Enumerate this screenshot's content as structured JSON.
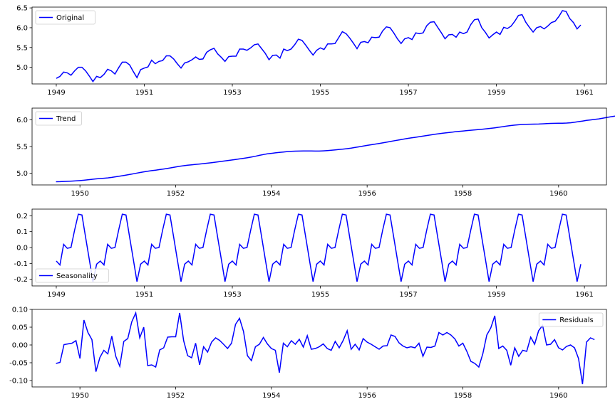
{
  "colors": {
    "line": "#0000ff",
    "axes": "#000000",
    "legend_edge": "#cccccc"
  },
  "chart_data": [
    {
      "type": "line",
      "ylim": [
        4.58,
        6.52
      ],
      "xlim": [
        1948.45,
        1961.5
      ],
      "yticks": [
        "5.0",
        "5.5",
        "6.0",
        "6.5"
      ],
      "ytick_values": [
        5.0,
        5.5,
        6.0,
        6.5
      ],
      "xticks": [
        "1949",
        "1951",
        "1953",
        "1955",
        "1957",
        "1959",
        "1961"
      ],
      "xtick_values": [
        1949,
        1951,
        1953,
        1955,
        1957,
        1959,
        1961
      ],
      "legend_position": "upper-left",
      "series": [
        {
          "name": "Original",
          "x_start": 1949.0,
          "x_step": 0.0833333,
          "values": [
            4.72,
            4.77,
            4.88,
            4.86,
            4.8,
            4.91,
            5.0,
            5.0,
            4.91,
            4.78,
            4.64,
            4.77,
            4.74,
            4.82,
            4.95,
            4.91,
            4.83,
            4.99,
            5.13,
            5.13,
            5.06,
            4.89,
            4.74,
            4.94,
            4.98,
            5.01,
            5.18,
            5.09,
            5.15,
            5.17,
            5.29,
            5.29,
            5.21,
            5.09,
            4.98,
            5.11,
            5.14,
            5.19,
            5.26,
            5.2,
            5.21,
            5.38,
            5.44,
            5.48,
            5.34,
            5.25,
            5.15,
            5.27,
            5.28,
            5.28,
            5.46,
            5.46,
            5.43,
            5.49,
            5.57,
            5.59,
            5.47,
            5.35,
            5.19,
            5.3,
            5.31,
            5.23,
            5.46,
            5.42,
            5.46,
            5.57,
            5.71,
            5.68,
            5.56,
            5.43,
            5.31,
            5.43,
            5.49,
            5.45,
            5.59,
            5.59,
            5.6,
            5.75,
            5.9,
            5.85,
            5.74,
            5.61,
            5.47,
            5.63,
            5.65,
            5.62,
            5.76,
            5.75,
            5.76,
            5.92,
            6.02,
            6.0,
            5.87,
            5.72,
            5.6,
            5.72,
            5.75,
            5.7,
            5.87,
            5.85,
            5.87,
            6.05,
            6.14,
            6.15,
            6.01,
            5.87,
            5.72,
            5.82,
            5.83,
            5.76,
            5.89,
            5.85,
            5.89,
            6.08,
            6.2,
            6.22,
            6.0,
            5.88,
            5.74,
            5.82,
            5.89,
            5.83,
            6.01,
            5.98,
            6.04,
            6.16,
            6.31,
            6.33,
            6.14,
            6.01,
            5.89,
            6.0,
            6.03,
            5.97,
            6.04,
            6.13,
            6.16,
            6.28,
            6.43,
            6.41,
            6.23,
            6.13,
            5.97,
            6.07
          ]
        }
      ]
    },
    {
      "type": "line",
      "ylim": [
        4.78,
        6.22
      ],
      "xlim": [
        1949.0,
        1961.0
      ],
      "yticks": [
        "5.0",
        "5.5",
        "6.0"
      ],
      "ytick_values": [
        5.0,
        5.5,
        6.0
      ],
      "xticks": [
        "1950",
        "1952",
        "1954",
        "1956",
        "1958",
        "1960"
      ],
      "xtick_values": [
        1950,
        1952,
        1954,
        1956,
        1958,
        1960
      ],
      "legend_position": "upper-left",
      "series": [
        {
          "name": "Trend",
          "x_start": 1949.5,
          "x_step": 0.0833333,
          "values": [
            4.84,
            4.842,
            4.845,
            4.848,
            4.852,
            4.856,
            4.861,
            4.868,
            4.876,
            4.885,
            4.893,
            4.9,
            4.905,
            4.912,
            4.922,
            4.933,
            4.945,
            4.957,
            4.969,
            4.982,
            4.997,
            5.012,
            5.026,
            5.038,
            5.048,
            5.058,
            5.068,
            5.079,
            5.091,
            5.104,
            5.117,
            5.129,
            5.14,
            5.149,
            5.157,
            5.165,
            5.172,
            5.18,
            5.188,
            5.197,
            5.207,
            5.217,
            5.227,
            5.237,
            5.247,
            5.257,
            5.268,
            5.279,
            5.29,
            5.303,
            5.318,
            5.335,
            5.35,
            5.362,
            5.372,
            5.381,
            5.39,
            5.398,
            5.405,
            5.41,
            5.413,
            5.415,
            5.416,
            5.416,
            5.416,
            5.415,
            5.415,
            5.418,
            5.424,
            5.431,
            5.438,
            5.445,
            5.452,
            5.46,
            5.47,
            5.482,
            5.495,
            5.508,
            5.521,
            5.533,
            5.545,
            5.557,
            5.57,
            5.583,
            5.596,
            5.61,
            5.624,
            5.637,
            5.65,
            5.661,
            5.672,
            5.683,
            5.695,
            5.707,
            5.719,
            5.73,
            5.74,
            5.749,
            5.758,
            5.767,
            5.776,
            5.784,
            5.791,
            5.798,
            5.805,
            5.812,
            5.819,
            5.826,
            5.834,
            5.842,
            5.851,
            5.861,
            5.872,
            5.883,
            5.893,
            5.901,
            5.908,
            5.913,
            5.916,
            5.918,
            5.92,
            5.922,
            5.925,
            5.929,
            5.933,
            5.935,
            5.936,
            5.937,
            5.94,
            5.946,
            5.955,
            5.966,
            5.978,
            5.989,
            5.998,
            6.008,
            6.018,
            6.03,
            6.043,
            6.056,
            6.068,
            6.078,
            6.087,
            6.096,
            6.105,
            6.114,
            6.124,
            6.132,
            6.139,
            6.146,
            6.153,
            6.16
          ]
        }
      ]
    },
    {
      "type": "line",
      "ylim": [
        -0.242,
        0.242
      ],
      "xlim": [
        1948.45,
        1961.5
      ],
      "yticks": [
        "-0.2",
        "-0.1",
        "0.0",
        "0.1",
        "0.2"
      ],
      "ytick_values": [
        -0.2,
        -0.1,
        0.0,
        0.1,
        0.2
      ],
      "xticks": [
        "1949",
        "1951",
        "1953",
        "1955",
        "1957",
        "1959",
        "1961"
      ],
      "xtick_values": [
        1949,
        1951,
        1953,
        1955,
        1957,
        1959,
        1961
      ],
      "legend_position": "lower-left",
      "series": [
        {
          "name": "Seasonality",
          "x_start": 1949.0,
          "x_step": 0.0833333,
          "pattern": [
            -0.085,
            -0.11,
            0.02,
            -0.005,
            -0.0,
            0.11,
            0.21,
            0.205,
            0.065,
            -0.075,
            -0.215,
            -0.105
          ],
          "repeat": 12
        }
      ]
    },
    {
      "type": "line",
      "ylim": [
        -0.118,
        0.1
      ],
      "xlim": [
        1949.0,
        1961.0
      ],
      "yticks": [
        "-0.10",
        "-0.05",
        "0.00",
        "0.05",
        "0.10"
      ],
      "ytick_values": [
        -0.1,
        -0.05,
        0.0,
        0.05,
        0.1
      ],
      "xticks": [
        "1950",
        "1952",
        "1954",
        "1956",
        "1958",
        "1960"
      ],
      "xtick_values": [
        1950,
        1952,
        1954,
        1956,
        1958,
        1960
      ],
      "legend_position": "upper-right",
      "series": [
        {
          "name": "Residuals",
          "x_start": 1949.5,
          "x_step": 0.0833333,
          "values": [
            -0.052,
            -0.049,
            0.001,
            0.003,
            0.005,
            0.012,
            -0.038,
            0.07,
            0.035,
            0.015,
            -0.075,
            -0.035,
            -0.015,
            -0.025,
            0.025,
            -0.032,
            -0.06,
            0.01,
            0.018,
            0.065,
            0.09,
            0.02,
            0.05,
            -0.058,
            -0.056,
            -0.062,
            -0.014,
            -0.008,
            0.022,
            0.023,
            0.023,
            0.09,
            0.012,
            -0.03,
            -0.036,
            0.005,
            -0.056,
            -0.005,
            -0.02,
            0.008,
            0.02,
            0.013,
            0.002,
            -0.01,
            0.005,
            0.058,
            0.075,
            0.038,
            -0.03,
            -0.044,
            -0.005,
            0.002,
            0.021,
            0.003,
            -0.01,
            -0.015,
            -0.078,
            0.005,
            -0.005,
            0.012,
            0.002,
            0.016,
            -0.006,
            0.026,
            -0.012,
            -0.01,
            -0.005,
            0.003,
            -0.01,
            -0.015,
            0.01,
            -0.008,
            0.013,
            0.04,
            -0.012,
            0.002,
            -0.014,
            0.018,
            0.008,
            0.002,
            -0.005,
            -0.012,
            -0.003,
            -0.002,
            0.028,
            0.024,
            0.006,
            -0.003,
            -0.008,
            -0.005,
            -0.008,
            0.005,
            -0.032,
            -0.006,
            -0.007,
            -0.003,
            0.035,
            0.028,
            0.035,
            0.028,
            0.017,
            -0.003,
            0.005,
            -0.018,
            -0.046,
            -0.052,
            -0.062,
            -0.025,
            0.028,
            0.048,
            0.082,
            -0.01,
            -0.003,
            -0.015,
            -0.057,
            -0.008,
            -0.032,
            -0.015,
            -0.018,
            0.022,
            0.002,
            0.04,
            0.055,
            0.0,
            0.002,
            0.015,
            -0.008,
            -0.014,
            -0.004,
            0.0,
            -0.008,
            -0.038,
            -0.11,
            0.008,
            0.02,
            0.015
          ]
        }
      ]
    }
  ]
}
